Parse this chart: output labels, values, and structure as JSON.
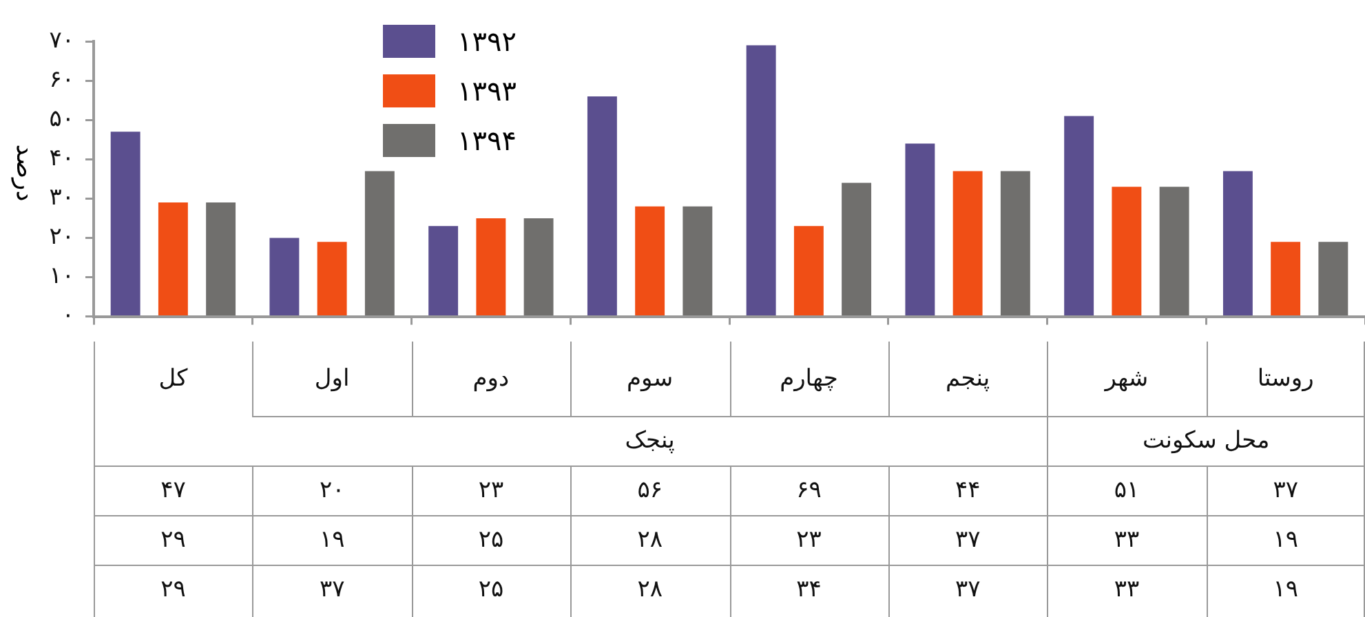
{
  "chart_data": {
    "type": "bar",
    "ylabel": "درصد",
    "categories": [
      "کل",
      "اول",
      "دوم",
      "سوم",
      "چهارم",
      "پنجم",
      "شهر",
      "روستا"
    ],
    "series": [
      {
        "name": "۱۳۹۲",
        "color": "#5b4f8f",
        "values": [
          47,
          20,
          23,
          56,
          69,
          44,
          51,
          37
        ],
        "value_labels": [
          "۴۷",
          "۲۰",
          "۲۳",
          "۵۶",
          "۶۹",
          "۴۴",
          "۵۱",
          "۳۷"
        ]
      },
      {
        "name": "۱۳۹۳",
        "color": "#f04e15",
        "values": [
          29,
          19,
          25,
          28,
          23,
          37,
          33,
          19
        ],
        "value_labels": [
          "۲۹",
          "۱۹",
          "۲۵",
          "۲۸",
          "۲۳",
          "۳۷",
          "۳۳",
          "۱۹"
        ]
      },
      {
        "name": "۱۳۹۴",
        "color": "#706f6d",
        "values": [
          29,
          37,
          25,
          28,
          34,
          37,
          33,
          19
        ],
        "value_labels": [
          "۲۹",
          "۳۷",
          "۲۵",
          "۲۸",
          "۳۴",
          "۳۷",
          "۳۳",
          "۱۹"
        ]
      }
    ],
    "annotations": [
      "پنجک",
      "محل سکونت"
    ],
    "ylim": [
      0,
      70
    ],
    "yticks": [
      {
        "value": 0,
        "label": "۰"
      },
      {
        "value": 10,
        "label": "۱۰"
      },
      {
        "value": 20,
        "label": "۲۰"
      },
      {
        "value": 30,
        "label": "۳۰"
      },
      {
        "value": 40,
        "label": "۴۰"
      },
      {
        "value": 50,
        "label": "۵۰"
      },
      {
        "value": 60,
        "label": "۶۰"
      },
      {
        "value": 70,
        "label": "۷۰"
      }
    ],
    "grid": false,
    "legend": "top"
  }
}
